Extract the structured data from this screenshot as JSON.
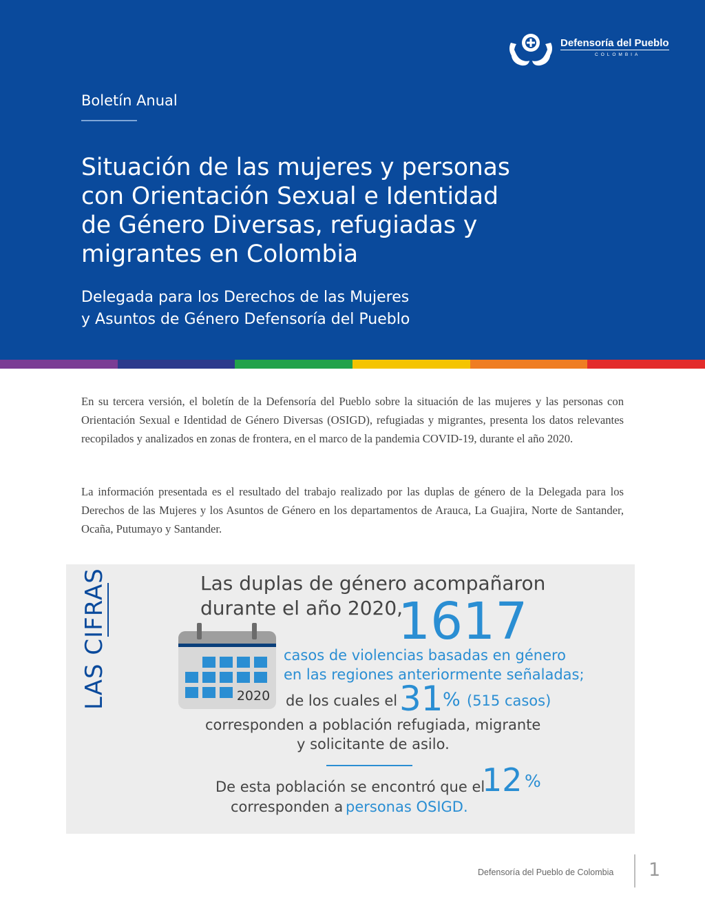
{
  "header": {
    "logo_name": "Defensoría del Pueblo",
    "logo_country": "COLOMBIA",
    "kicker": "Boletín Anual",
    "title": "Situación de las mujeres y personas con Orientación Sexual e Identidad de Género Diversas, refugiadas y migrantes en Colombia",
    "subtitle_line1": "Delegada para los Derechos de las Mujeres",
    "subtitle_line2": "y Asuntos de Género Defensoría del Pueblo"
  },
  "rainbow_colors": [
    "#7b3c94",
    "#2b3a8c",
    "#22a24a",
    "#f4c400",
    "#ef7d22",
    "#e32b2b"
  ],
  "intro": {
    "paragraph1": "En su tercera versión, el boletín de la Defensoría del Pueblo sobre la situación de las mujeres y las personas con Orientación Sexual e Identidad de Género Diversas (OSIGD), refugiadas y migrantes, presenta los datos relevantes recopilados y analizados en zonas de frontera, en el marco de la pandemia COVID-19, durante el año 2020.",
    "paragraph2": "La información presentada es el resultado del trabajo realizado por las duplas de género de la Delegada para los Derechos de las Mujeres y los Asuntos de Género en los departamentos de  Arauca, La Guajira, Norte de Santander, Ocaña, Putumayo y Santander."
  },
  "cifras": {
    "label": "LAS CIFRAS",
    "lead_line1": "Las duplas de género acompañaron",
    "lead_line2": "durante el año 2020,",
    "total_cases": "1617",
    "cases_line1": "casos de violencias basadas en género",
    "cases_line2": "en las regiones anteriormente señaladas;",
    "of_which": "de los cuales el",
    "pct_migrant": "31",
    "pct_sign": "%",
    "migrant_cases": "(515 casos)",
    "migrant_line1": "corresponden a población refugiada, migrante",
    "migrant_line2": "y solicitante de asilo.",
    "osigd_intro": "De esta población se encontró que el",
    "pct_osigd": "12",
    "pct_sign2": "%",
    "osigd_line_prefix": "corresponden a",
    "osigd_highlight": "personas OSIGD.",
    "calendar_year": "2020",
    "calendar_icon": "calendar-icon"
  },
  "colors": {
    "brand_blue": "#0a4a9c",
    "accent_blue": "#2a8ed3",
    "panel_gray": "#ededed"
  },
  "footer": {
    "org": "Defensoría del Pueblo de Colombia",
    "page": "1"
  }
}
